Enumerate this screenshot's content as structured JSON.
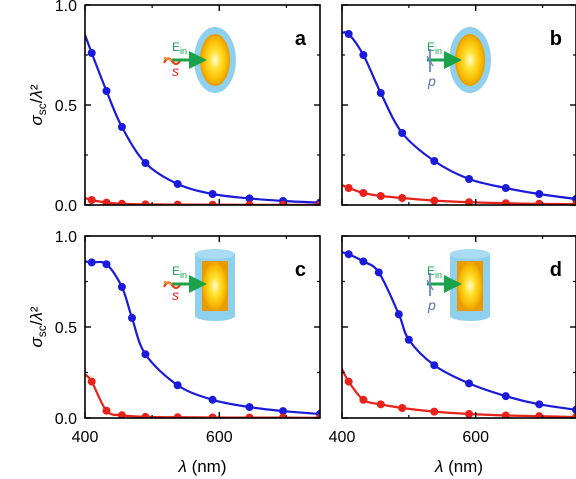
{
  "chart_data": [
    {
      "type": "line",
      "panel": "a",
      "inset": {
        "e_label_main": "E",
        "e_label_sub": "in",
        "pol_label": "s",
        "shape": "ellipsoid",
        "pol": "s"
      },
      "xlim": [
        400,
        750
      ],
      "ylim": [
        0,
        1.0
      ],
      "xticks": [
        400,
        600
      ],
      "yticks": [
        0.0,
        0.5,
        1.0
      ],
      "xlabel": "λ (nm)",
      "ylabel": "σsc/λ²",
      "series": [
        {
          "color": "#1a1adc",
          "x": [
            400,
            410,
            432,
            455,
            490,
            538,
            590,
            645,
            695,
            750
          ],
          "y": [
            0.85,
            0.76,
            0.57,
            0.39,
            0.21,
            0.105,
            0.055,
            0.033,
            0.02,
            0.012
          ]
        },
        {
          "color": "#e8221a",
          "x": [
            400,
            410,
            432,
            455,
            490,
            538,
            590,
            645,
            695,
            750
          ],
          "y": [
            0.035,
            0.025,
            0.012,
            0.006,
            0.003,
            0.002,
            0.0015,
            0.001,
            0.001,
            0.001
          ]
        }
      ]
    },
    {
      "type": "line",
      "panel": "b",
      "inset": {
        "e_label_main": "E",
        "e_label_sub": "in",
        "pol_label": "p",
        "shape": "ellipsoid",
        "pol": "p"
      },
      "xlim": [
        400,
        750
      ],
      "ylim": [
        0,
        1.0
      ],
      "xticks": [
        400,
        600
      ],
      "yticks": [
        0.0,
        0.5,
        1.0
      ],
      "xlabel": "λ (nm)",
      "ylabel": "",
      "series": [
        {
          "color": "#1a1adc",
          "x": [
            400,
            410,
            432,
            458,
            490,
            538,
            590,
            645,
            695,
            750
          ],
          "y": [
            0.86,
            0.855,
            0.75,
            0.56,
            0.36,
            0.22,
            0.13,
            0.085,
            0.055,
            0.03
          ]
        },
        {
          "color": "#e8221a",
          "x": [
            400,
            410,
            432,
            458,
            490,
            538,
            590,
            645,
            695,
            750
          ],
          "y": [
            0.1,
            0.085,
            0.06,
            0.045,
            0.035,
            0.022,
            0.014,
            0.009,
            0.006,
            0.004
          ]
        }
      ]
    },
    {
      "type": "line",
      "panel": "c",
      "inset": {
        "e_label_main": "E",
        "e_label_sub": "in",
        "pol_label": "s",
        "shape": "cylinder",
        "pol": "s"
      },
      "xlim": [
        400,
        750
      ],
      "ylim": [
        0,
        1.0
      ],
      "xticks": [
        400,
        600
      ],
      "yticks": [
        0.0,
        0.5,
        1.0
      ],
      "xlabel": "λ (nm)",
      "ylabel": "σsc/λ²",
      "series": [
        {
          "color": "#1a1adc",
          "x": [
            400,
            410,
            432,
            455,
            470,
            490,
            538,
            590,
            645,
            695,
            750
          ],
          "y": [
            0.86,
            0.855,
            0.845,
            0.72,
            0.55,
            0.35,
            0.18,
            0.1,
            0.06,
            0.038,
            0.022
          ]
        },
        {
          "color": "#e8221a",
          "x": [
            400,
            410,
            432,
            455,
            490,
            538,
            590,
            645,
            695,
            750
          ],
          "y": [
            0.24,
            0.2,
            0.04,
            0.015,
            0.006,
            0.004,
            0.003,
            0.002,
            0.002,
            0.001
          ]
        }
      ]
    },
    {
      "type": "line",
      "panel": "d",
      "inset": {
        "e_label_main": "E",
        "e_label_sub": "in",
        "pol_label": "p",
        "shape": "cylinder",
        "pol": "p"
      },
      "xlim": [
        400,
        750
      ],
      "ylim": [
        0,
        1.0
      ],
      "xticks": [
        400,
        600
      ],
      "yticks": [
        0.0,
        0.5,
        1.0
      ],
      "xlabel": "λ (nm)",
      "ylabel": "",
      "series": [
        {
          "color": "#1a1adc",
          "x": [
            400,
            410,
            432,
            455,
            485,
            500,
            538,
            590,
            645,
            695,
            750
          ],
          "y": [
            0.91,
            0.9,
            0.86,
            0.8,
            0.57,
            0.43,
            0.29,
            0.19,
            0.12,
            0.075,
            0.045
          ]
        },
        {
          "color": "#e8221a",
          "x": [
            400,
            410,
            432,
            458,
            490,
            538,
            590,
            645,
            695,
            750
          ],
          "y": [
            0.27,
            0.2,
            0.1,
            0.075,
            0.055,
            0.035,
            0.022,
            0.014,
            0.01,
            0.005
          ]
        }
      ]
    }
  ]
}
